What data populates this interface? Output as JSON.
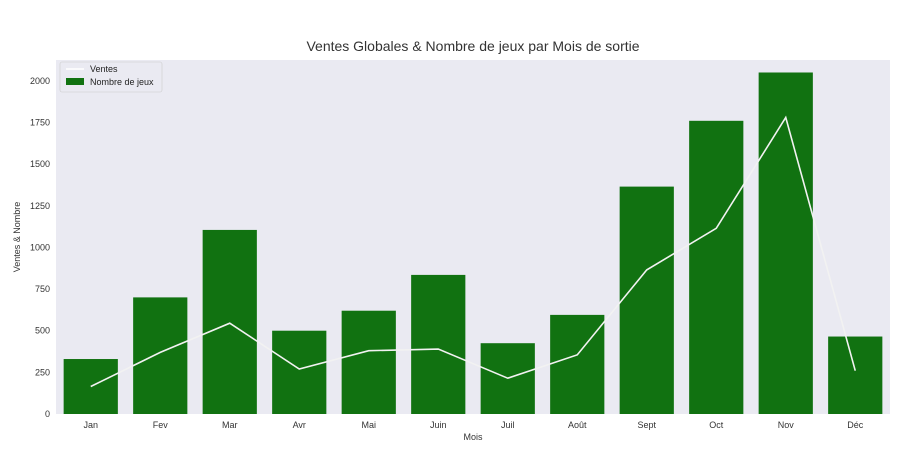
{
  "chart_data": {
    "type": "bar",
    "title": "Ventes Globales & Nombre de jeux par Mois de sortie",
    "xlabel": "Mois",
    "ylabel": "Ventes & Nombre",
    "categories": [
      "Jan",
      "Fev",
      "Mar",
      "Avr",
      "Mai",
      "Juin",
      "Juil",
      "Août",
      "Sept",
      "Oct",
      "Nov",
      "Déc"
    ],
    "ylim": [
      0,
      2125
    ],
    "yticks": [
      "0",
      "250",
      "500",
      "750",
      "1000",
      "1250",
      "1500",
      "1750",
      "2000"
    ],
    "grid": false,
    "legend_position": "top-left",
    "series": [
      {
        "name": "Nombre de jeux",
        "type": "bar",
        "color": "#117211",
        "values": [
          330,
          700,
          1105,
          500,
          620,
          835,
          425,
          595,
          1365,
          1760,
          2050,
          465
        ]
      },
      {
        "name": "Ventes",
        "type": "line",
        "color": "#f2f2f2",
        "values": [
          165,
          370,
          545,
          270,
          380,
          390,
          215,
          355,
          865,
          1115,
          1780,
          260
        ]
      }
    ],
    "background": "#eaeaf2"
  }
}
